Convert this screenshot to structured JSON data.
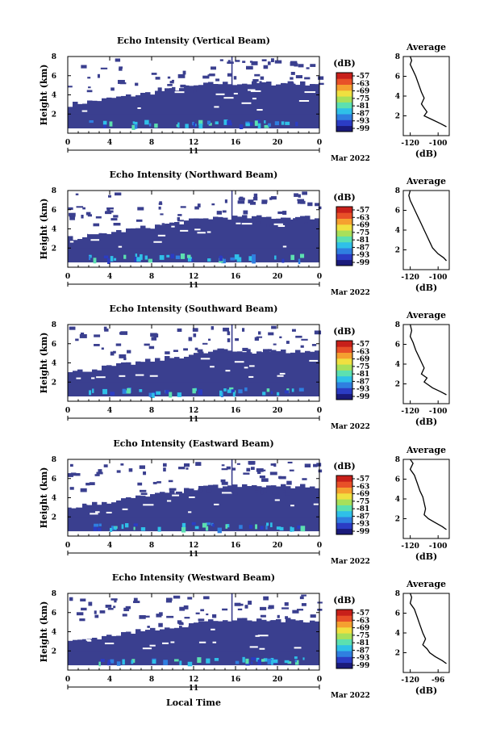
{
  "figure": {
    "x_axis_label": "Local Time",
    "date_label": "Mar 2022",
    "day_label": "11",
    "height_label": "Height (km)",
    "colorbar_unit": "(dB)",
    "average_title": "Average",
    "average_unit": "(dB)"
  },
  "chart_data": [
    {
      "type": "heatmap",
      "title": "Echo Intensity (Vertical Beam)",
      "xlabel": "",
      "ylabel": "Height (km)",
      "x_ticks": [
        "0",
        "4",
        "8",
        "12",
        "16",
        "20",
        "0"
      ],
      "y_ticks": [
        "8",
        "6",
        "4",
        "2"
      ],
      "xlim": [
        0,
        24
      ],
      "ylim": [
        0,
        8
      ],
      "colorbar": {
        "unit": "(dB)",
        "ticks": [
          "-57",
          "-63",
          "-69",
          "-75",
          "-81",
          "-87",
          "-93",
          "-99"
        ]
      },
      "average": {
        "title": "Average",
        "xlabel": "(dB)",
        "x_ticks": [
          "-120",
          "-100"
        ],
        "y_ticks": [
          "8",
          "6",
          "4",
          "2"
        ],
        "xlim": [
          -125,
          -92
        ],
        "profile": [
          [
            -120,
            8.0
          ],
          [
            -119,
            7.6
          ],
          [
            -120,
            7.2
          ],
          [
            -118,
            6.6
          ],
          [
            -116,
            6.0
          ],
          [
            -114,
            5.2
          ],
          [
            -112,
            4.4
          ],
          [
            -110,
            3.8
          ],
          [
            -112,
            3.2
          ],
          [
            -110,
            2.8
          ],
          [
            -108,
            2.4
          ],
          [
            -110,
            2.0
          ],
          [
            -104,
            1.6
          ],
          [
            -98,
            1.2
          ],
          [
            -94,
            0.9
          ]
        ]
      }
    },
    {
      "type": "heatmap",
      "title": "Echo Intensity (Northward Beam)",
      "xlabel": "",
      "ylabel": "Height (km)",
      "x_ticks": [
        "0",
        "4",
        "8",
        "12",
        "16",
        "20",
        "0"
      ],
      "y_ticks": [
        "8",
        "6",
        "4",
        "2"
      ],
      "xlim": [
        0,
        24
      ],
      "ylim": [
        0,
        8
      ],
      "colorbar": {
        "unit": "(dB)",
        "ticks": [
          "-57",
          "-63",
          "-69",
          "-75",
          "-81",
          "-87",
          "-93",
          "-99"
        ]
      },
      "average": {
        "title": "Average",
        "xlabel": "(dB)",
        "x_ticks": [
          "-120",
          "-100"
        ],
        "y_ticks": [
          "8",
          "6",
          "4",
          "2"
        ],
        "xlim": [
          -125,
          -92
        ],
        "profile": [
          [
            -120,
            8.0
          ],
          [
            -121,
            7.5
          ],
          [
            -120,
            7.0
          ],
          [
            -118,
            6.4
          ],
          [
            -116,
            5.8
          ],
          [
            -114,
            5.2
          ],
          [
            -112,
            4.6
          ],
          [
            -110,
            4.0
          ],
          [
            -108,
            3.4
          ],
          [
            -106,
            2.8
          ],
          [
            -104,
            2.2
          ],
          [
            -100,
            1.6
          ],
          [
            -96,
            1.2
          ],
          [
            -94,
            0.9
          ]
        ]
      }
    },
    {
      "type": "heatmap",
      "title": "Echo Intensity (Southward Beam)",
      "xlabel": "",
      "ylabel": "Height (km)",
      "x_ticks": [
        "0",
        "4",
        "8",
        "12",
        "16",
        "20",
        "0"
      ],
      "y_ticks": [
        "8",
        "6",
        "4",
        "2"
      ],
      "xlim": [
        0,
        24
      ],
      "ylim": [
        0,
        8
      ],
      "colorbar": {
        "unit": "(dB)",
        "ticks": [
          "-57",
          "-63",
          "-69",
          "-75",
          "-81",
          "-87",
          "-93",
          "-99"
        ]
      },
      "average": {
        "title": "Average",
        "xlabel": "(dB)",
        "x_ticks": [
          "-120",
          "-100"
        ],
        "y_ticks": [
          "8",
          "6",
          "4",
          "2"
        ],
        "xlim": [
          -125,
          -92
        ],
        "profile": [
          [
            -120,
            8.0
          ],
          [
            -119,
            7.4
          ],
          [
            -120,
            6.8
          ],
          [
            -118,
            6.2
          ],
          [
            -116,
            5.4
          ],
          [
            -114,
            4.8
          ],
          [
            -112,
            4.2
          ],
          [
            -110,
            3.6
          ],
          [
            -112,
            3.0
          ],
          [
            -108,
            2.6
          ],
          [
            -110,
            2.2
          ],
          [
            -104,
            1.6
          ],
          [
            -98,
            1.2
          ],
          [
            -94,
            0.9
          ]
        ]
      }
    },
    {
      "type": "heatmap",
      "title": "Echo Intensity (Eastward Beam)",
      "xlabel": "",
      "ylabel": "Height (km)",
      "x_ticks": [
        "0",
        "4",
        "8",
        "12",
        "16",
        "20",
        "0"
      ],
      "y_ticks": [
        "8",
        "6",
        "4",
        "2"
      ],
      "xlim": [
        0,
        24
      ],
      "ylim": [
        0,
        8
      ],
      "colorbar": {
        "unit": "(dB)",
        "ticks": [
          "-57",
          "-63",
          "-69",
          "-75",
          "-81",
          "-87",
          "-93",
          "-99"
        ]
      },
      "average": {
        "title": "Average",
        "xlabel": "(dB)",
        "x_ticks": [
          "-120",
          "-100"
        ],
        "y_ticks": [
          "8",
          "6",
          "4",
          "2"
        ],
        "xlim": [
          -125,
          -92
        ],
        "profile": [
          [
            -120,
            8.0
          ],
          [
            -118,
            7.6
          ],
          [
            -120,
            7.0
          ],
          [
            -117,
            6.4
          ],
          [
            -115,
            5.6
          ],
          [
            -113,
            4.8
          ],
          [
            -111,
            4.2
          ],
          [
            -110,
            3.6
          ],
          [
            -109,
            3.0
          ],
          [
            -110,
            2.4
          ],
          [
            -107,
            2.0
          ],
          [
            -102,
            1.6
          ],
          [
            -97,
            1.2
          ],
          [
            -94,
            0.9
          ]
        ]
      }
    },
    {
      "type": "heatmap",
      "title": "Echo Intensity (Westward Beam)",
      "xlabel": "Local Time",
      "ylabel": "Height (km)",
      "x_ticks": [
        "0",
        "4",
        "8",
        "12",
        "16",
        "20",
        "0"
      ],
      "y_ticks": [
        "8",
        "6",
        "4",
        "2"
      ],
      "xlim": [
        0,
        24
      ],
      "ylim": [
        0,
        8
      ],
      "colorbar": {
        "unit": "(dB)",
        "ticks": [
          "-57",
          "-63",
          "-69",
          "-75",
          "-81",
          "-87",
          "-93",
          "-99"
        ]
      },
      "average": {
        "title": "Average",
        "xlabel": "(dB)",
        "x_ticks": [
          "-120",
          "-96"
        ],
        "y_ticks": [
          "8",
          "6",
          "4",
          "2"
        ],
        "xlim": [
          -125,
          -92
        ],
        "profile": [
          [
            -120,
            8.0
          ],
          [
            -119,
            7.6
          ],
          [
            -120,
            7.0
          ],
          [
            -117,
            6.4
          ],
          [
            -115,
            5.6
          ],
          [
            -113,
            4.8
          ],
          [
            -111,
            4.0
          ],
          [
            -109,
            3.4
          ],
          [
            -111,
            2.8
          ],
          [
            -108,
            2.4
          ],
          [
            -106,
            2.0
          ],
          [
            -102,
            1.6
          ],
          [
            -97,
            1.2
          ],
          [
            -94,
            0.9
          ]
        ]
      }
    }
  ]
}
